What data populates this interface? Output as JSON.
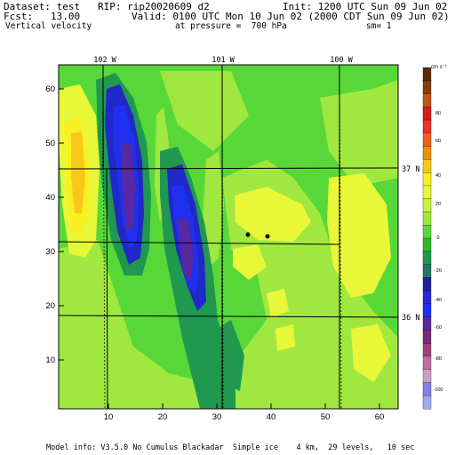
{
  "header": {
    "dataset": "Dataset: test   RIP: rip20020609 d2",
    "init": "Init: 1200 UTC Sun 09 Jun 02",
    "fcst": "Fcst:   13.00",
    "valid": "Valid: 0100 UTC Mon 10 Jun 02 (2000 CDT Sun 09 Jun 02)",
    "field": "Vertical velocity",
    "pressure": "at pressure =  700 hPa",
    "smooth": "sm= 1"
  },
  "axes": {
    "x_ticks": [
      "10",
      "20",
      "30",
      "40",
      "50",
      "60"
    ],
    "y_ticks": [
      "10",
      "20",
      "30",
      "40",
      "50",
      "60"
    ],
    "lon_labels": [
      "102 W",
      "101 W",
      "100 W"
    ],
    "lat_labels": [
      "37 N",
      "36 N"
    ]
  },
  "colorbar": {
    "unit": "cm s⁻¹",
    "tick_labels": [
      "80",
      "60",
      "40",
      "20",
      "0",
      "-20",
      "-40",
      "-60",
      "-80",
      "-100"
    ],
    "colors": [
      "#5a2a06",
      "#8a3c06",
      "#c05410",
      "#d81c1c",
      "#f03028",
      "#f06018",
      "#f08c10",
      "#f8c818",
      "#f8f020",
      "#e8f838",
      "#c8f040",
      "#a0e840",
      "#58d838",
      "#30b830",
      "#209850",
      "#207868",
      "#2020a0",
      "#2828d8",
      "#2030f0",
      "#5828a0",
      "#7a2a7a",
      "#a04080",
      "#c070a0",
      "#c8a0c8",
      "#8080e8",
      "#a0a8f0"
    ]
  },
  "footer": "Model info: V3.5.0 No Cumulus Blackadar  Simple ice    4 km,  29 levels,   10 sec",
  "colors": {
    "field_yellow": "#e8f838",
    "field_green": "#58d838",
    "updraft_blue": "#2828d8",
    "downdraft_teal": "#209850"
  }
}
